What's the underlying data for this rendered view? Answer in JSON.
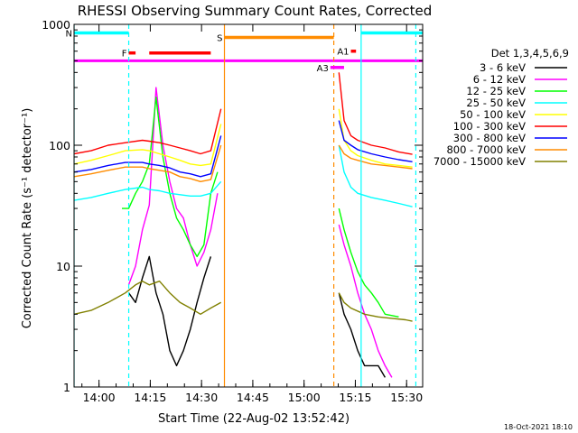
{
  "chart_data": {
    "type": "line",
    "title": "RHESSI Observing Summary Count Rates, Corrected",
    "xlabel": "Start Time (22-Aug-02 13:52:42)",
    "ylabel": "Corrected Count Rate (s⁻¹ detector⁻¹)",
    "x_unit": "minutes after 13:52:42",
    "xlim": [
      0,
      102
    ],
    "ylim": [
      1,
      1000
    ],
    "yscale": "log",
    "xticks": [
      {
        "label": "14:00",
        "value": 7.3
      },
      {
        "label": "14:15",
        "value": 22.3
      },
      {
        "label": "14:30",
        "value": 37.3
      },
      {
        "label": "14:45",
        "value": 52.3
      },
      {
        "label": "15:00",
        "value": 67.3
      },
      {
        "label": "15:15",
        "value": 82.3
      },
      {
        "label": "15:30",
        "value": 97.3
      }
    ],
    "yticks": [
      {
        "label": "1",
        "value": 1
      },
      {
        "label": "10",
        "value": 10
      },
      {
        "label": "100",
        "value": 100
      },
      {
        "label": "1000",
        "value": 1000
      }
    ],
    "legend_title": "Det 1,3,4,5,6,9",
    "legend_position": "right",
    "footer": "18-Oct-2021 18:10",
    "series": [
      {
        "name": "3 - 6 keV",
        "color": "#000000",
        "points": [
          [
            16,
            6
          ],
          [
            18,
            5
          ],
          [
            20,
            8
          ],
          [
            22,
            12
          ],
          [
            24,
            6
          ],
          [
            26,
            4
          ],
          [
            28,
            2
          ],
          [
            30,
            1.5
          ],
          [
            32,
            2
          ],
          [
            34,
            3
          ],
          [
            36,
            5
          ],
          [
            38,
            8
          ],
          [
            40,
            12
          ]
        ],
        "points_b": [
          [
            77.5,
            6
          ],
          [
            79,
            4
          ],
          [
            81,
            3
          ],
          [
            83,
            2
          ],
          [
            85,
            1.5
          ],
          [
            87,
            1.5
          ],
          [
            89,
            1.5
          ],
          [
            91,
            1.2
          ]
        ]
      },
      {
        "name": "6 - 12 keV",
        "color": "#ff00ff",
        "points": [
          [
            16,
            7
          ],
          [
            18,
            10
          ],
          [
            20,
            20
          ],
          [
            22,
            32
          ],
          [
            24,
            300
          ],
          [
            26,
            100
          ],
          [
            28,
            50
          ],
          [
            30,
            30
          ],
          [
            32,
            25
          ],
          [
            34,
            15
          ],
          [
            36,
            10
          ],
          [
            38,
            13
          ],
          [
            40,
            20
          ],
          [
            42,
            40
          ]
        ],
        "points_b": [
          [
            77.5,
            22
          ],
          [
            79,
            15
          ],
          [
            81,
            10
          ],
          [
            83,
            6
          ],
          [
            85,
            4
          ],
          [
            87,
            3
          ],
          [
            89,
            2
          ],
          [
            91,
            1.5
          ],
          [
            93,
            1.2
          ]
        ]
      },
      {
        "name": "12 - 25 keV",
        "color": "#00ff00",
        "points": [
          [
            14,
            30
          ],
          [
            16,
            30
          ],
          [
            18,
            40
          ],
          [
            20,
            50
          ],
          [
            22,
            70
          ],
          [
            24,
            250
          ],
          [
            26,
            80
          ],
          [
            28,
            40
          ],
          [
            30,
            25
          ],
          [
            32,
            20
          ],
          [
            34,
            15
          ],
          [
            36,
            12
          ],
          [
            38,
            15
          ],
          [
            40,
            40
          ],
          [
            42,
            60
          ]
        ],
        "points_b": [
          [
            77.5,
            30
          ],
          [
            79,
            20
          ],
          [
            81,
            13
          ],
          [
            83,
            9
          ],
          [
            85,
            7
          ],
          [
            87,
            6
          ],
          [
            89,
            5
          ],
          [
            91,
            4
          ],
          [
            95,
            3.8
          ]
        ]
      },
      {
        "name": "25 - 50 keV",
        "color": "#00ffff",
        "points": [
          [
            0,
            35
          ],
          [
            5,
            37
          ],
          [
            10,
            40
          ],
          [
            15,
            43
          ],
          [
            20,
            45
          ],
          [
            22,
            43
          ],
          [
            25,
            42
          ],
          [
            28,
            40
          ],
          [
            31,
            39
          ],
          [
            34,
            38
          ],
          [
            37,
            38
          ],
          [
            40,
            40
          ],
          [
            43,
            50
          ]
        ],
        "points_b": [
          [
            77.5,
            100
          ],
          [
            79,
            60
          ],
          [
            81,
            45
          ],
          [
            83,
            40
          ],
          [
            87,
            37
          ],
          [
            91,
            35
          ],
          [
            95,
            33
          ],
          [
            99,
            31
          ]
        ]
      },
      {
        "name": "50 - 100 keV",
        "color": "#ffff00",
        "points": [
          [
            0,
            70
          ],
          [
            5,
            75
          ],
          [
            10,
            82
          ],
          [
            15,
            90
          ],
          [
            20,
            92
          ],
          [
            22,
            90
          ],
          [
            25,
            85
          ],
          [
            28,
            80
          ],
          [
            31,
            75
          ],
          [
            34,
            70
          ],
          [
            37,
            68
          ],
          [
            40,
            70
          ],
          [
            43,
            150
          ]
        ],
        "points_b": [
          [
            77.5,
            200
          ],
          [
            79,
            110
          ],
          [
            81,
            90
          ],
          [
            83,
            82
          ],
          [
            87,
            75
          ],
          [
            91,
            70
          ],
          [
            95,
            68
          ],
          [
            99,
            66
          ]
        ]
      },
      {
        "name": "100 - 300 keV",
        "color": "#ff0000",
        "points": [
          [
            0,
            85
          ],
          [
            5,
            90
          ],
          [
            10,
            100
          ],
          [
            15,
            105
          ],
          [
            20,
            110
          ],
          [
            22,
            108
          ],
          [
            25,
            105
          ],
          [
            28,
            100
          ],
          [
            31,
            95
          ],
          [
            34,
            90
          ],
          [
            37,
            85
          ],
          [
            40,
            90
          ],
          [
            43,
            200
          ]
        ],
        "points_b": [
          [
            77.5,
            400
          ],
          [
            79,
            160
          ],
          [
            81,
            120
          ],
          [
            83,
            110
          ],
          [
            87,
            100
          ],
          [
            91,
            95
          ],
          [
            95,
            88
          ],
          [
            99,
            84
          ]
        ]
      },
      {
        "name": "300 - 800 keV",
        "color": "#0000ff",
        "points": [
          [
            0,
            60
          ],
          [
            5,
            63
          ],
          [
            10,
            68
          ],
          [
            15,
            72
          ],
          [
            20,
            72
          ],
          [
            22,
            70
          ],
          [
            25,
            68
          ],
          [
            28,
            65
          ],
          [
            31,
            60
          ],
          [
            34,
            58
          ],
          [
            37,
            55
          ],
          [
            40,
            58
          ],
          [
            43,
            120
          ]
        ],
        "points_b": [
          [
            77.5,
            160
          ],
          [
            79,
            110
          ],
          [
            81,
            100
          ],
          [
            83,
            92
          ],
          [
            87,
            85
          ],
          [
            91,
            80
          ],
          [
            95,
            76
          ],
          [
            99,
            73
          ]
        ]
      },
      {
        "name": "800 - 7000 keV",
        "color": "#ff8c00",
        "points": [
          [
            0,
            55
          ],
          [
            5,
            58
          ],
          [
            10,
            62
          ],
          [
            15,
            66
          ],
          [
            20,
            66
          ],
          [
            22,
            64
          ],
          [
            25,
            62
          ],
          [
            28,
            60
          ],
          [
            31,
            55
          ],
          [
            34,
            53
          ],
          [
            37,
            50
          ],
          [
            40,
            52
          ],
          [
            43,
            100
          ]
        ],
        "points_b": [
          [
            77.5,
            100
          ],
          [
            79,
            85
          ],
          [
            81,
            78
          ],
          [
            83,
            75
          ],
          [
            87,
            70
          ],
          [
            91,
            68
          ],
          [
            95,
            66
          ],
          [
            99,
            64
          ]
        ]
      },
      {
        "name": "7000 - 15000 keV",
        "color": "#808000",
        "points": [
          [
            0,
            4
          ],
          [
            5,
            4.3
          ],
          [
            10,
            5
          ],
          [
            15,
            6
          ],
          [
            18,
            7
          ],
          [
            20,
            7.5
          ],
          [
            22,
            7
          ],
          [
            25,
            7.5
          ],
          [
            28,
            6
          ],
          [
            31,
            5
          ],
          [
            34,
            4.5
          ],
          [
            37,
            4
          ],
          [
            40,
            4.5
          ],
          [
            43,
            5
          ]
        ],
        "points_b": [
          [
            77.5,
            6
          ],
          [
            79,
            5
          ],
          [
            81,
            4.5
          ],
          [
            85,
            4
          ],
          [
            89,
            3.8
          ],
          [
            93,
            3.7
          ],
          [
            97,
            3.6
          ],
          [
            99,
            3.5
          ]
        ]
      }
    ],
    "attenuator_line": {
      "from": 0,
      "to": 102,
      "value": 500,
      "color": "#ff00ff"
    },
    "flags": [
      {
        "label": "N",
        "color": "#00ffff",
        "level": 850,
        "segments": [
          [
            0,
            16
          ],
          [
            84,
            102
          ]
        ]
      },
      {
        "label": "F",
        "color": "#ff0000",
        "level": 580,
        "segments": [
          [
            16,
            18
          ],
          [
            22,
            40
          ]
        ]
      },
      {
        "label": "S",
        "color": "#ff8c00",
        "level": 780,
        "segments": [
          [
            44,
            76
          ]
        ]
      },
      {
        "label": "A1",
        "color": "#ff0000",
        "level": 600,
        "segments": [
          [
            81,
            82.5
          ]
        ]
      },
      {
        "label": "A3",
        "color": "#ff00ff",
        "level": 440,
        "segments": [
          [
            75,
            79
          ]
        ]
      }
    ],
    "vertical_markers": [
      {
        "x": 0,
        "color": "#00ffff",
        "style": "solid"
      },
      {
        "x": 16,
        "color": "#00ffff",
        "style": "dashed"
      },
      {
        "x": 44,
        "color": "#ff8c00",
        "style": "solid"
      },
      {
        "x": 76,
        "color": "#ff8c00",
        "style": "dashed"
      },
      {
        "x": 84,
        "color": "#00ffff",
        "style": "solid"
      },
      {
        "x": 100,
        "color": "#00ffff",
        "style": "dashed"
      }
    ],
    "grid": false
  }
}
